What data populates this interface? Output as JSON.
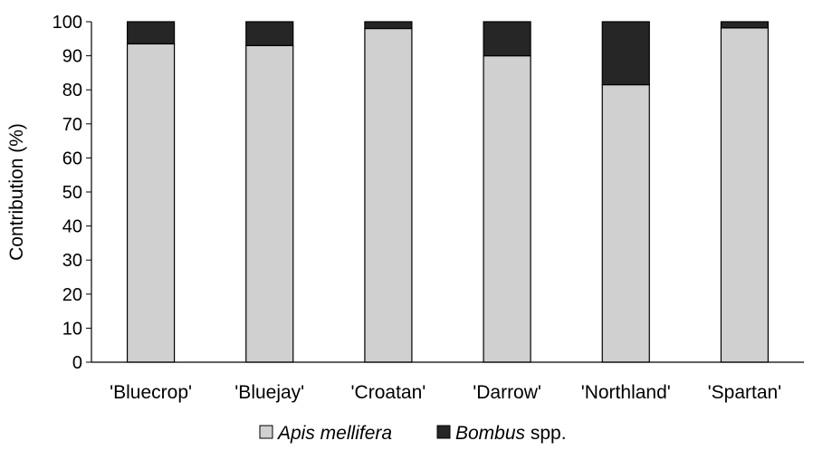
{
  "chart_data": {
    "type": "bar",
    "stacked": true,
    "categories": [
      "'Bluecrop'",
      "'Bluejay'",
      "'Croatan'",
      "'Darrow'",
      "'Northland'",
      "'Spartan'"
    ],
    "series": [
      {
        "name_italic": "Apis mellifera",
        "name_suffix": "",
        "color": "#d0d0d0",
        "values": [
          93.5,
          93,
          98,
          90,
          81.5,
          98.2
        ]
      },
      {
        "name_italic": "Bombus",
        "name_suffix": " spp.",
        "color": "#262626",
        "values": [
          6.5,
          7,
          2,
          10,
          18.5,
          1.8
        ]
      }
    ],
    "ylabel": "Contribution (%)",
    "ylim": [
      0,
      100
    ],
    "yticks": [
      0,
      10,
      20,
      30,
      40,
      50,
      60,
      70,
      80,
      90,
      100
    ],
    "grid": false,
    "legend_position": "bottom"
  }
}
